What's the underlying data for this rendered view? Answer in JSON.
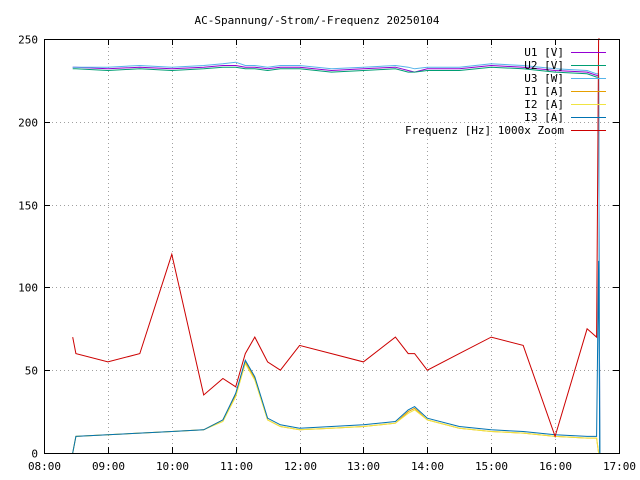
{
  "chart_data": {
    "type": "line",
    "title": "AC-Spannung/-Strom/-Frequenz 20250104",
    "xlabel": "",
    "ylabel": "",
    "x_ticks": [
      "08:00",
      "09:00",
      "10:00",
      "11:00",
      "12:00",
      "13:00",
      "14:00",
      "15:00",
      "16:00",
      "17:00"
    ],
    "xlim_hours": [
      8,
      17
    ],
    "y_ticks": [
      "0",
      "50",
      "100",
      "150",
      "200",
      "250"
    ],
    "ylim": [
      0,
      250
    ],
    "grid": true,
    "legend_position": "top-right",
    "x_hours": [
      8.45,
      8.5,
      9.0,
      9.5,
      10.0,
      10.5,
      10.8,
      11.0,
      11.15,
      11.3,
      11.5,
      11.7,
      12.0,
      12.5,
      13.0,
      13.5,
      13.7,
      13.8,
      14.0,
      14.5,
      15.0,
      15.5,
      16.0,
      16.5,
      16.65,
      16.68,
      16.7
    ],
    "series": [
      {
        "name": "U1 [V]",
        "color": "#9400d3",
        "values": [
          233,
          233,
          232,
          233,
          232,
          233,
          234,
          234,
          233,
          233,
          232,
          233,
          233,
          231,
          232,
          233,
          231,
          230,
          232,
          232,
          234,
          233,
          231,
          230,
          228,
          228,
          0
        ]
      },
      {
        "name": "U2 [V]",
        "color": "#009e73",
        "values": [
          232,
          232,
          231,
          232,
          231,
          232,
          233,
          233,
          232,
          232,
          231,
          232,
          232,
          230,
          231,
          232,
          230,
          230,
          231,
          231,
          233,
          232,
          230,
          229,
          227,
          227,
          0
        ]
      },
      {
        "name": "U3 [W]",
        "color": "#56b4e9",
        "values": [
          233,
          233,
          233,
          234,
          233,
          234,
          235,
          236,
          234,
          234,
          233,
          234,
          234,
          232,
          233,
          234,
          233,
          232,
          233,
          233,
          235,
          234,
          232,
          231,
          229,
          229,
          0
        ]
      },
      {
        "name": "I1 [A]",
        "color": "#e69f00",
        "values": [
          0,
          10,
          11,
          12,
          13,
          14,
          20,
          35,
          55,
          45,
          20,
          16,
          14,
          15,
          16,
          18,
          25,
          27,
          20,
          15,
          13,
          12,
          10,
          9,
          9,
          0,
          0
        ]
      },
      {
        "name": "I2 [A]",
        "color": "#f0e442",
        "values": [
          0,
          10,
          11,
          12,
          13,
          14,
          19,
          34,
          54,
          44,
          20,
          16,
          14,
          15,
          16,
          18,
          24,
          26,
          20,
          15,
          13,
          12,
          10,
          9,
          9,
          0,
          0
        ]
      },
      {
        "name": "I3 [A]",
        "color": "#0072b2",
        "values": [
          0,
          10,
          11,
          12,
          13,
          14,
          20,
          36,
          56,
          46,
          21,
          17,
          15,
          16,
          17,
          19,
          26,
          28,
          21,
          16,
          14,
          13,
          11,
          10,
          10,
          116,
          0
        ]
      },
      {
        "name": "Frequenz [Hz] 1000x Zoom",
        "color": "#cc0000",
        "values": [
          70,
          60,
          55,
          60,
          120,
          35,
          45,
          40,
          60,
          70,
          55,
          50,
          65,
          60,
          55,
          70,
          60,
          60,
          50,
          60,
          70,
          65,
          10,
          75,
          70,
          250,
          250
        ]
      }
    ]
  }
}
